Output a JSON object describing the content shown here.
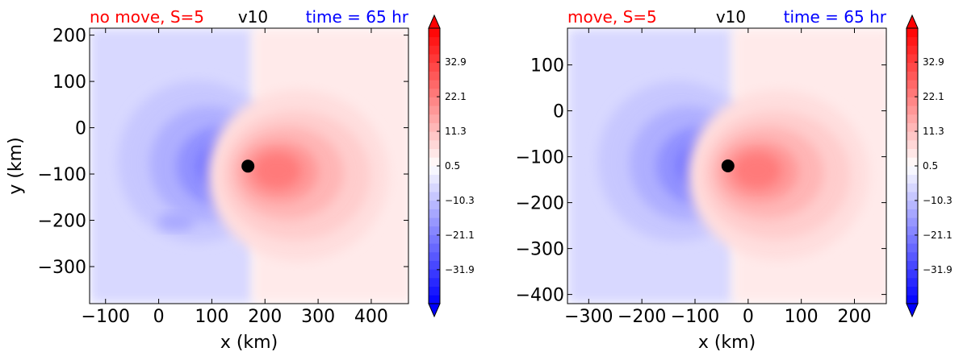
{
  "chart_data": [
    {
      "type": "contour",
      "title_left": "no move, S=5",
      "title_center": "v10",
      "title_right": "time = 65 hr",
      "title_left_color": "#ff0000",
      "title_center_color": "#000000",
      "title_right_color": "#0000ff",
      "xlabel": "x (km)",
      "ylabel": "y (km)",
      "xlim": [
        -130,
        470
      ],
      "ylim": [
        -380,
        215
      ],
      "xticks": [
        -100,
        0,
        100,
        200,
        300,
        400
      ],
      "yticks": [
        200,
        100,
        0,
        -100,
        -200,
        -300
      ],
      "xtick_labels": [
        "−100",
        "0",
        "100",
        "200",
        "300",
        "400"
      ],
      "ytick_labels": [
        "200",
        "100",
        "0",
        "−100",
        "−200",
        "−300"
      ],
      "center_marker": {
        "x": 168,
        "y": -83
      },
      "colormap": "bwr",
      "colorbar": {
        "vmin": -42.5,
        "vmax": 43.5,
        "extend": "both",
        "tick_values": [
          32.9,
          22.1,
          11.3,
          0.5,
          -10.3,
          -21.1,
          -31.9
        ],
        "tick_labels": [
          "32.9",
          "22.1",
          "11.3",
          "0.5",
          "−10.3",
          "−21.1",
          "−31.9"
        ]
      }
    },
    {
      "type": "contour",
      "title_left": "move, S=5",
      "title_center": "v10",
      "title_right": "time = 65 hr",
      "title_left_color": "#ff0000",
      "title_center_color": "#000000",
      "title_right_color": "#0000ff",
      "xlabel": "x (km)",
      "ylabel": "",
      "xlim": [
        -340,
        260
      ],
      "ylim": [
        -420,
        180
      ],
      "xticks": [
        -300,
        -200,
        -100,
        0,
        100,
        200
      ],
      "yticks": [
        100,
        0,
        -100,
        -200,
        -300,
        -400
      ],
      "xtick_labels": [
        "−300",
        "−200",
        "−100",
        "0",
        "100",
        "200"
      ],
      "ytick_labels": [
        "100",
        "0",
        "−100",
        "−200",
        "−300",
        "−400"
      ],
      "center_marker": {
        "x": -38,
        "y": -120
      },
      "colormap": "bwr",
      "colorbar": {
        "vmin": -42.5,
        "vmax": 43.5,
        "extend": "both",
        "tick_values": [
          32.9,
          22.1,
          11.3,
          0.5,
          -10.3,
          -21.1,
          -31.9
        ],
        "tick_labels": [
          "32.9",
          "22.1",
          "11.3",
          "0.5",
          "−10.3",
          "−21.1",
          "−31.9"
        ]
      }
    }
  ]
}
